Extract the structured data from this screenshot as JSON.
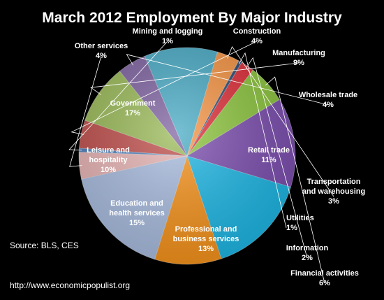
{
  "chart_data": {
    "type": "pie",
    "title": "March 2012 Employment By Major Industry",
    "source": "Source:  BLS, CES",
    "url": "http://www.economicpopulist.org",
    "slices": [
      {
        "name": "Mining and logging",
        "label": "Mining and logging",
        "pct": "1%",
        "value": 0.6,
        "color": "#4f81bd"
      },
      {
        "name": "Construction",
        "label": "Construction",
        "pct": "4%",
        "value": 4.2,
        "color": "#c0504d"
      },
      {
        "name": "Manufacturing",
        "label": "Manufacturing",
        "pct": "9%",
        "value": 9.0,
        "color": "#9bbb59"
      },
      {
        "name": "Wholesale trade",
        "label": "Wholesale trade",
        "pct": "4%",
        "value": 4.3,
        "color": "#8064a2"
      },
      {
        "name": "Retail trade",
        "label": "Retail trade",
        "pct": "11%",
        "value": 11.0,
        "color": "#4bacc6"
      },
      {
        "name": "Transportation and warehousing",
        "label": "Transportation\nand warehousing",
        "pct": "3%",
        "value": 3.4,
        "color": "#f79646"
      },
      {
        "name": "Utilities",
        "label": "Utilities",
        "pct": "1%",
        "value": 0.5,
        "color": "#2c4d75"
      },
      {
        "name": "Information",
        "label": "Information",
        "pct": "2%",
        "value": 2.0,
        "color": "#e0303a"
      },
      {
        "name": "Financial activities",
        "label": "Financial activities",
        "pct": "6%",
        "value": 5.9,
        "color": "#8ec63f"
      },
      {
        "name": "Professional and business services",
        "label": "Professional and\nbusiness services",
        "pct": "13%",
        "value": 13.4,
        "color": "#7d4fb0"
      },
      {
        "name": "Education and health services",
        "label": "Education and\nhealth services",
        "pct": "15%",
        "value": 15.3,
        "color": "#1fb8e6"
      },
      {
        "name": "Leisure and hospitality",
        "label": "Leisure and\nhospitality",
        "pct": "10%",
        "value": 10.0,
        "color": "#f7941d"
      },
      {
        "name": "Government",
        "label": "Government",
        "pct": "17%",
        "value": 16.8,
        "color": "#a9bde0"
      },
      {
        "name": "Other services",
        "label": "Other services",
        "pct": "4%",
        "value": 4.0,
        "color": "#e8b4b4"
      }
    ]
  }
}
